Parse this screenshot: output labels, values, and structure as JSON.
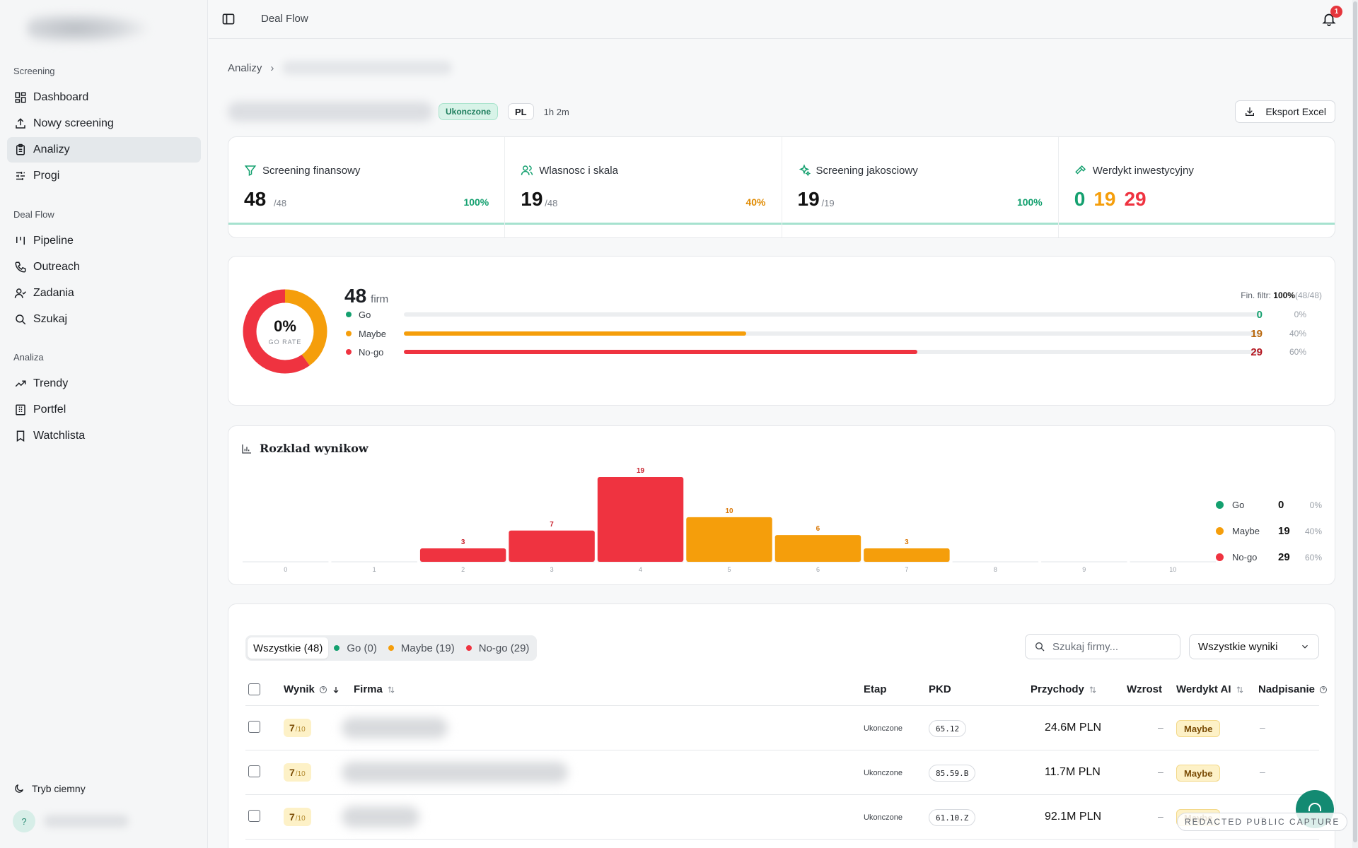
{
  "sidebar": {
    "groups": [
      {
        "label": "Screening",
        "items": [
          {
            "label": "Dashboard",
            "icon": "dashboard-icon"
          },
          {
            "label": "Nowy screening",
            "icon": "upload-icon"
          },
          {
            "label": "Analizy",
            "icon": "clipboard-icon",
            "active": true
          },
          {
            "label": "Progi",
            "icon": "sliders-icon"
          }
        ]
      },
      {
        "label": "Deal Flow",
        "items": [
          {
            "label": "Pipeline",
            "icon": "kanban-icon"
          },
          {
            "label": "Outreach",
            "icon": "phone-icon"
          },
          {
            "label": "Zadania",
            "icon": "user-check-icon"
          },
          {
            "label": "Szukaj",
            "icon": "search-icon"
          }
        ]
      },
      {
        "label": "Analiza",
        "items": [
          {
            "label": "Trendy",
            "icon": "trending-up-icon"
          },
          {
            "label": "Portfel",
            "icon": "building-icon"
          },
          {
            "label": "Watchlista",
            "icon": "bookmark-icon"
          }
        ]
      }
    ],
    "dark_mode_label": "Tryb ciemny",
    "avatar_text": "?"
  },
  "topbar": {
    "title": "Deal Flow",
    "notification_count": "1"
  },
  "breadcrumb": {
    "root": "Analizy"
  },
  "header": {
    "status_badge": "Ukonczone",
    "language_badge": "PL",
    "duration": "1h 2m",
    "export_label": "Eksport Excel"
  },
  "stages": [
    {
      "title": "Screening finansowy",
      "value": "48",
      "denominator": "/48",
      "percent": "100%",
      "percent_color": "#14a06f"
    },
    {
      "title": "Wlasnosc i skala",
      "value": "19",
      "denominator": "/48",
      "percent": "40%",
      "percent_color": "#e08a00"
    },
    {
      "title": "Screening jakosciowy",
      "value": "19",
      "denominator": "/19",
      "percent": "100%",
      "percent_color": "#14a06f"
    },
    {
      "title": "Werdykt inwestycyjny",
      "go": "0",
      "maybe": "19",
      "nogo": "29"
    }
  ],
  "summary": {
    "go_rate": "0%",
    "go_rate_label": "GO RATE",
    "total": "48",
    "total_unit": "firm",
    "fin_filter_label": "Fin. filtr:",
    "fin_filter_value": "100%",
    "fin_filter_sub": "(48/48)",
    "rows": [
      {
        "label": "Go",
        "count": "0",
        "percent": "0%",
        "fraction": 0.0,
        "color": "#14a06f"
      },
      {
        "label": "Maybe",
        "count": "19",
        "percent": "40%",
        "fraction": 0.4,
        "color": "#f59e0b"
      },
      {
        "label": "No-go",
        "count": "29",
        "percent": "60%",
        "fraction": 0.6,
        "color": "#ef3340"
      }
    ]
  },
  "distribution": {
    "title": "Rozklad wynikow",
    "legend": [
      {
        "label": "Go",
        "count": "0",
        "percent": "0%",
        "color": "#14a06f"
      },
      {
        "label": "Maybe",
        "count": "19",
        "percent": "40%",
        "color": "#f59e0b"
      },
      {
        "label": "No-go",
        "count": "29",
        "percent": "60%",
        "color": "#ef3340"
      }
    ]
  },
  "chart_data": {
    "type": "bar",
    "title": "Rozklad wynikow",
    "categories": [
      "0",
      "1",
      "2",
      "3",
      "4",
      "5",
      "6",
      "7",
      "8",
      "9",
      "10"
    ],
    "values": [
      0,
      0,
      3,
      7,
      19,
      10,
      6,
      3,
      0,
      0,
      0
    ],
    "bar_colors": [
      "#ef3340",
      "#ef3340",
      "#ef3340",
      "#ef3340",
      "#ef3340",
      "#f59e0b",
      "#f59e0b",
      "#f59e0b",
      "#f59e0b",
      "#f59e0b",
      "#f59e0b"
    ],
    "ylim": [
      0,
      19
    ],
    "grid": false,
    "legend_position": "right"
  },
  "table": {
    "tabs": [
      {
        "label": "Wszystkie (48)",
        "active": true
      },
      {
        "label": "Go (0)",
        "color": "#14a06f"
      },
      {
        "label": "Maybe (19)",
        "color": "#f59e0b"
      },
      {
        "label": "No-go (29)",
        "color": "#ef3340"
      }
    ],
    "search_placeholder": "Szukaj firmy...",
    "filter_value": "Wszystkie wyniki",
    "columns": {
      "score": "Wynik",
      "company": "Firma",
      "stage": "Etap",
      "pkd": "PKD",
      "revenue": "Przychody",
      "growth": "Wzrost",
      "verdict": "Werdykt AI",
      "override": "Nadpisanie"
    },
    "rows": [
      {
        "score": "7",
        "score_max": "/10",
        "stage": "Ukonczone",
        "pkd": "65.12",
        "revenue": "24.6M PLN",
        "growth": "–",
        "verdict": "Maybe",
        "override": "–"
      },
      {
        "score": "7",
        "score_max": "/10",
        "stage": "Ukonczone",
        "pkd": "85.59.B",
        "revenue": "11.7M PLN",
        "growth": "–",
        "verdict": "Maybe",
        "override": "–"
      },
      {
        "score": "7",
        "score_max": "/10",
        "stage": "Ukonczone",
        "pkd": "61.10.Z",
        "revenue": "92.1M PLN",
        "growth": "–",
        "verdict": "Maybe",
        "override": "–"
      }
    ]
  },
  "watermark": "REDACTED PUBLIC CAPTURE"
}
